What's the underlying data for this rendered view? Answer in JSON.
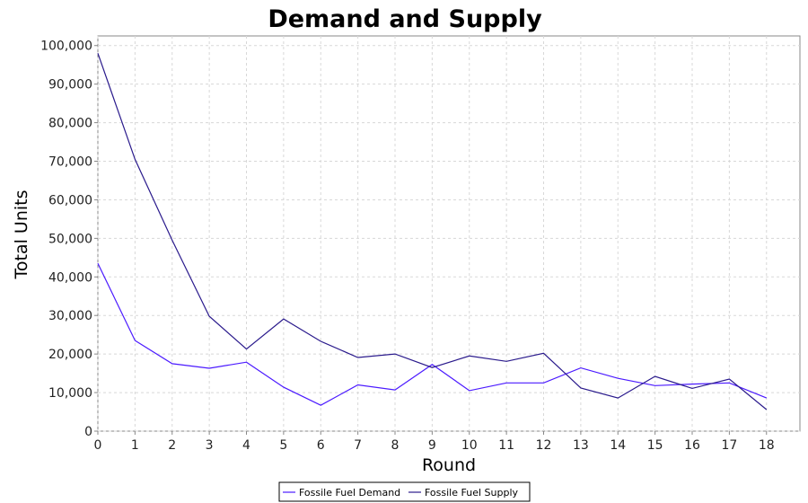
{
  "chart_data": {
    "type": "line",
    "title": "Demand and Supply",
    "xlabel": "Round",
    "ylabel": "Total Units",
    "x": [
      0,
      1,
      2,
      3,
      4,
      5,
      6,
      7,
      8,
      9,
      10,
      11,
      12,
      13,
      14,
      15,
      16,
      17,
      18
    ],
    "xlim": [
      0,
      18.9
    ],
    "ylim": [
      0,
      102500
    ],
    "y_ticks": [
      0,
      10000,
      20000,
      30000,
      40000,
      50000,
      60000,
      70000,
      80000,
      90000,
      100000
    ],
    "y_tick_labels": [
      "0",
      "10,000",
      "20,000",
      "30,000",
      "40,000",
      "50,000",
      "60,000",
      "70,000",
      "80,000",
      "90,000",
      "100,000"
    ],
    "x_tick_labels": [
      "0",
      "1",
      "2",
      "3",
      "4",
      "5",
      "6",
      "7",
      "8",
      "9",
      "10",
      "11",
      "12",
      "13",
      "14",
      "15",
      "16",
      "17",
      "18"
    ],
    "grid": true,
    "legend_position": "bottom",
    "series": [
      {
        "name": "Fossile Fuel Demand",
        "color": "#4b1aff",
        "values": [
          43500,
          23500,
          17500,
          16300,
          17900,
          11400,
          6700,
          12000,
          10700,
          17300,
          10500,
          12500,
          12500,
          16400,
          13700,
          11800,
          12200,
          12500,
          8600
        ]
      },
      {
        "name": "Fossile Fuel Supply",
        "color": "#2a1a8c",
        "values": [
          98000,
          70500,
          49500,
          29800,
          21300,
          29100,
          23300,
          19100,
          20000,
          16500,
          19500,
          18100,
          20200,
          11200,
          8600,
          14200,
          11100,
          13500,
          5600
        ]
      }
    ]
  }
}
